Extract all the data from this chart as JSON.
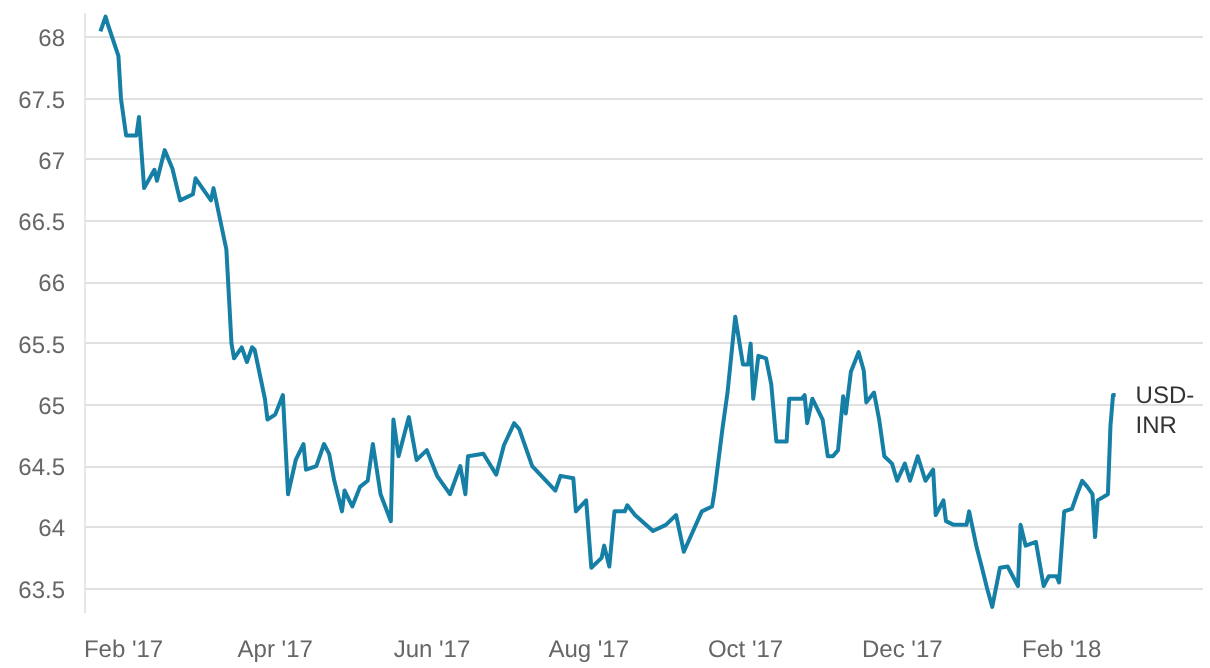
{
  "chart_data": {
    "type": "line",
    "x": [
      "2017-01-23",
      "2017-01-25",
      "2017-01-26",
      "2017-01-30",
      "2017-01-31",
      "2017-02-02",
      "2017-02-06",
      "2017-02-07",
      "2017-02-09",
      "2017-02-13",
      "2017-02-14",
      "2017-02-17",
      "2017-02-20",
      "2017-02-23",
      "2017-02-28",
      "2017-03-01",
      "2017-03-07",
      "2017-03-08",
      "2017-03-13",
      "2017-03-15",
      "2017-03-16",
      "2017-03-19",
      "2017-03-21",
      "2017-03-23",
      "2017-03-24",
      "2017-03-28",
      "2017-03-29",
      "2017-04-01",
      "2017-04-04",
      "2017-04-06",
      "2017-04-09",
      "2017-04-12",
      "2017-04-13",
      "2017-04-17",
      "2017-04-20",
      "2017-04-22",
      "2017-04-24",
      "2017-04-27",
      "2017-04-28",
      "2017-05-01",
      "2017-05-04",
      "2017-05-07",
      "2017-05-09",
      "2017-05-12",
      "2017-05-16",
      "2017-05-17",
      "2017-05-19",
      "2017-05-23",
      "2017-05-26",
      "2017-05-30",
      "2017-06-03",
      "2017-06-08",
      "2017-06-12",
      "2017-06-14",
      "2017-06-15",
      "2017-06-21",
      "2017-06-26",
      "2017-06-29",
      "2017-07-03",
      "2017-07-05",
      "2017-07-10",
      "2017-07-19",
      "2017-07-21",
      "2017-07-26",
      "2017-07-27",
      "2017-07-31",
      "2017-08-02",
      "2017-08-06",
      "2017-08-07",
      "2017-08-09",
      "2017-08-11",
      "2017-08-15",
      "2017-08-16",
      "2017-08-19",
      "2017-08-26",
      "2017-08-31",
      "2017-09-04",
      "2017-09-07",
      "2017-09-14",
      "2017-09-18",
      "2017-09-19",
      "2017-09-22",
      "2017-09-24",
      "2017-09-27",
      "2017-09-30",
      "2017-10-02",
      "2017-10-03",
      "2017-10-04",
      "2017-10-06",
      "2017-10-09",
      "2017-10-11",
      "2017-10-13",
      "2017-10-17",
      "2017-10-18",
      "2017-10-23",
      "2017-10-24",
      "2017-10-25",
      "2017-10-27",
      "2017-10-31",
      "2017-11-02",
      "2017-11-04",
      "2017-11-06",
      "2017-11-08",
      "2017-11-09",
      "2017-11-11",
      "2017-11-14",
      "2017-11-16",
      "2017-11-17",
      "2017-11-20",
      "2017-11-22",
      "2017-11-24",
      "2017-11-27",
      "2017-11-29",
      "2017-12-02",
      "2017-12-04",
      "2017-12-07",
      "2017-12-10",
      "2017-12-13",
      "2017-12-14",
      "2017-12-17",
      "2017-12-18",
      "2017-12-21",
      "2017-12-26",
      "2017-12-27",
      "2017-12-30",
      "2018-01-01",
      "2018-01-03",
      "2018-01-05",
      "2018-01-08",
      "2018-01-11",
      "2018-01-15",
      "2018-01-16",
      "2018-01-18",
      "2018-01-22",
      "2018-01-25",
      "2018-01-27",
      "2018-01-30",
      "2018-01-31",
      "2018-02-02",
      "2018-02-05",
      "2018-02-07",
      "2018-02-09",
      "2018-02-11",
      "2018-02-13",
      "2018-02-14",
      "2018-02-15",
      "2018-02-19",
      "2018-02-20",
      "2018-02-21",
      "2018-02-22"
    ],
    "series": [
      {
        "name": "USD-INR",
        "color": "#167fa6",
        "values": [
          68.05,
          68.17,
          68.1,
          67.85,
          67.5,
          67.2,
          67.2,
          67.35,
          66.77,
          66.92,
          66.83,
          67.08,
          66.93,
          66.67,
          66.72,
          66.85,
          66.67,
          66.77,
          66.27,
          65.5,
          65.38,
          65.47,
          65.35,
          65.47,
          65.45,
          65.05,
          64.88,
          64.92,
          65.08,
          64.27,
          64.55,
          64.68,
          64.47,
          64.5,
          64.68,
          64.6,
          64.38,
          64.13,
          64.3,
          64.17,
          64.33,
          64.38,
          64.68,
          64.27,
          64.05,
          64.88,
          64.58,
          64.9,
          64.55,
          64.63,
          64.42,
          64.27,
          64.5,
          64.27,
          64.58,
          64.6,
          64.43,
          64.67,
          64.85,
          64.8,
          64.5,
          64.3,
          64.42,
          64.4,
          64.13,
          64.22,
          63.67,
          63.75,
          63.85,
          63.68,
          64.13,
          64.13,
          64.18,
          64.1,
          63.97,
          64.02,
          64.1,
          63.8,
          64.13,
          64.17,
          64.3,
          64.8,
          65.1,
          65.72,
          65.33,
          65.33,
          65.5,
          65.05,
          65.4,
          65.38,
          65.17,
          64.7,
          64.7,
          65.05,
          65.05,
          65.08,
          64.85,
          65.05,
          64.88,
          64.58,
          64.58,
          64.63,
          65.07,
          64.93,
          65.27,
          65.43,
          65.28,
          65.02,
          65.1,
          64.88,
          64.58,
          64.52,
          64.38,
          64.52,
          64.38,
          64.58,
          64.38,
          64.47,
          64.1,
          64.22,
          64.05,
          64.02,
          64.02,
          64.13,
          63.83,
          63.67,
          63.5,
          63.35,
          63.67,
          63.68,
          63.52,
          64.02,
          63.85,
          63.88,
          63.52,
          63.6,
          63.6,
          63.55,
          64.13,
          64.15,
          64.27,
          64.38,
          64.33,
          64.27,
          63.92,
          64.22,
          64.27,
          64.83,
          65.08,
          65.08
        ]
      }
    ],
    "xlim": [
      "2017-01-17",
      "2018-03-28"
    ],
    "xticks": [
      {
        "value": "2017-02-01",
        "label": "Feb '17"
      },
      {
        "value": "2017-04-01",
        "label": "Apr '17"
      },
      {
        "value": "2017-06-01",
        "label": "Jun '17"
      },
      {
        "value": "2017-08-01",
        "label": "Aug '17"
      },
      {
        "value": "2017-10-01",
        "label": "Oct '17"
      },
      {
        "value": "2017-12-01",
        "label": "Dec '17"
      },
      {
        "value": "2018-02-01",
        "label": "Feb '18"
      }
    ],
    "ylim": [
      63.3,
      68.2
    ],
    "yticks": [
      63.5,
      64,
      64.5,
      65,
      65.5,
      66,
      66.5,
      67,
      67.5,
      68
    ],
    "grid": "y",
    "marker": "none",
    "line_style": "solid"
  }
}
